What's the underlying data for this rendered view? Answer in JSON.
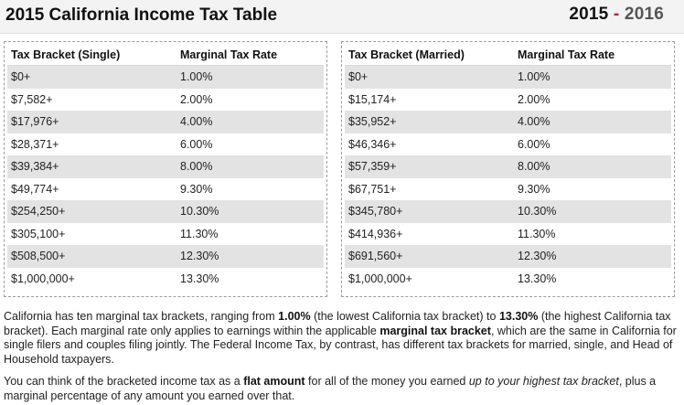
{
  "header": {
    "title": "2015 California Income Tax Table",
    "year_start": "2015",
    "year_sep": " - ",
    "year_end": "2016"
  },
  "single": {
    "headers": [
      "Tax Bracket (Single)",
      "Marginal Tax Rate"
    ],
    "rows": [
      [
        "$0+",
        "1.00%"
      ],
      [
        "$7,582+",
        "2.00%"
      ],
      [
        "$17,976+",
        "4.00%"
      ],
      [
        "$28,371+",
        "6.00%"
      ],
      [
        "$39,384+",
        "8.00%"
      ],
      [
        "$49,774+",
        "9.30%"
      ],
      [
        "$254,250+",
        "10.30%"
      ],
      [
        "$305,100+",
        "11.30%"
      ],
      [
        "$508,500+",
        "12.30%"
      ],
      [
        "$1,000,000+",
        "13.30%"
      ]
    ]
  },
  "married": {
    "headers": [
      "Tax Bracket (Married)",
      "Marginal Tax Rate"
    ],
    "rows": [
      [
        "$0+",
        "1.00%"
      ],
      [
        "$15,174+",
        "2.00%"
      ],
      [
        "$35,952+",
        "4.00%"
      ],
      [
        "$46,346+",
        "6.00%"
      ],
      [
        "$57,359+",
        "8.00%"
      ],
      [
        "$67,751+",
        "9.30%"
      ],
      [
        "$345,780+",
        "10.30%"
      ],
      [
        "$414,936+",
        "11.30%"
      ],
      [
        "$691,560+",
        "12.30%"
      ],
      [
        "$1,000,000+",
        "13.30%"
      ]
    ]
  },
  "para1": {
    "t1": "California has ten marginal tax brackets, ranging from ",
    "b1": "1.00%",
    "t2": " (the lowest California tax bracket) to ",
    "b2": "13.30%",
    "t3": " (the highest California tax bracket). Each marginal rate only applies to earnings within the applicable ",
    "b3": "marginal tax bracket",
    "t4": ", which are the same in California for single filers and couples filing jointly. The Federal Income Tax, by contrast, has different tax brackets for married, single, and Head of Household taxpayers."
  },
  "para2": {
    "t1": "You can think of the bracketed income tax as a ",
    "b1": "flat amount",
    "t2": " for all of the money you earned ",
    "i1": "up to your highest tax bracket",
    "t3": ", plus a marginal percentage of any amount you earned over that."
  },
  "colors": {
    "header_bg": "#f3f3f3",
    "stripe": "#e3e3e3",
    "year_dash": "#c8102e"
  }
}
